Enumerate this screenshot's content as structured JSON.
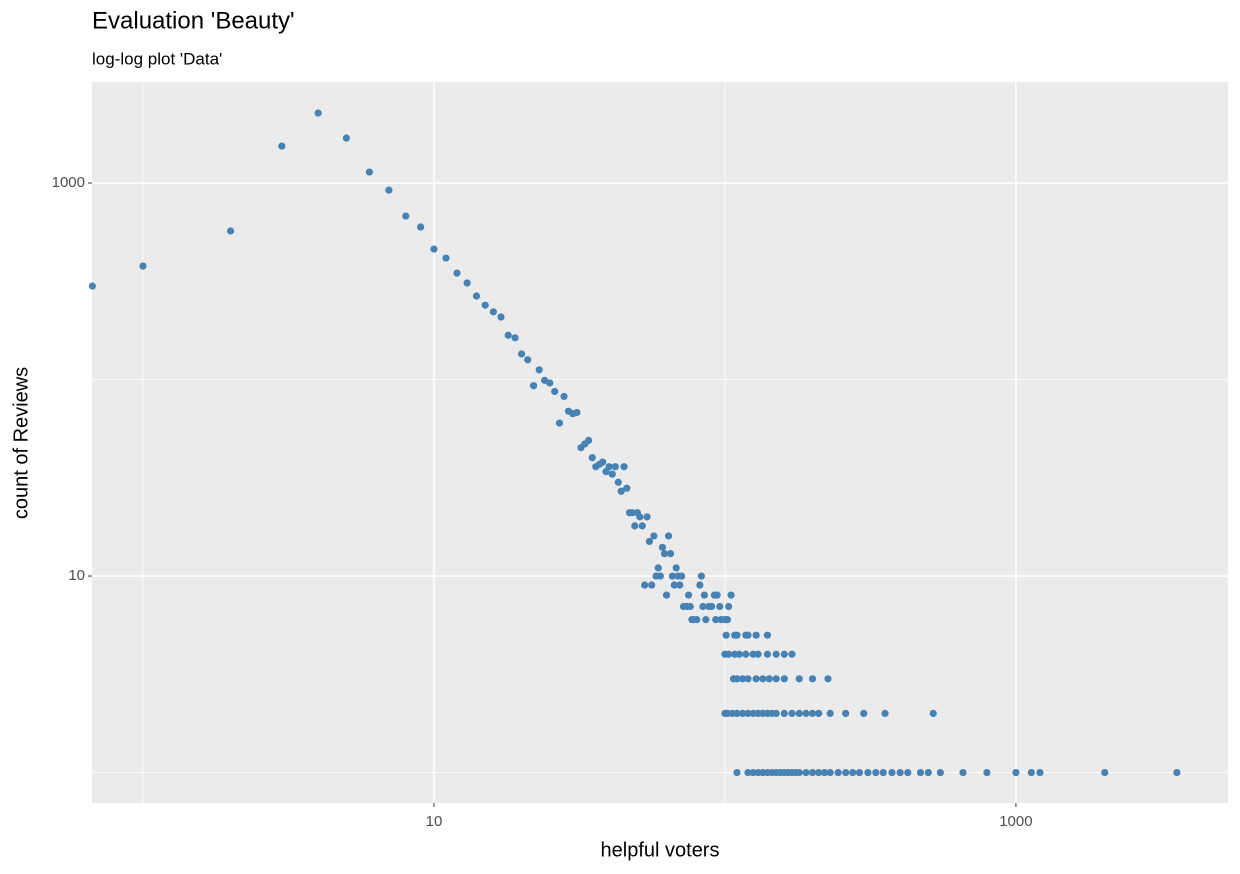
{
  "chart_data": {
    "type": "scatter",
    "title": "Evaluation 'Beauty'",
    "subtitle": "log-log plot 'Data'",
    "x_label": "helpful voters",
    "y_label": "count of Reviews",
    "log_x": true,
    "log_y": true,
    "grid": true,
    "xlim": [
      0.668,
      5357
    ],
    "ylim": [
      0.7,
      3266
    ],
    "xticks": [
      10,
      1000
    ],
    "yticks": [
      10,
      1000
    ],
    "xgrid_minor": [
      1,
      100
    ],
    "ygrid_minor": [
      1,
      100
    ],
    "series": [
      {
        "color": "#4682b4",
        "x": [
          0.67,
          1,
          2,
          3,
          4,
          5,
          6,
          7,
          8,
          9,
          10,
          11,
          12,
          13,
          14,
          15,
          16,
          17,
          18,
          19,
          20,
          21,
          22,
          23,
          24,
          25,
          26,
          27,
          28,
          29,
          30,
          31,
          32,
          33,
          34,
          35,
          36,
          37,
          38,
          39,
          40,
          41,
          42,
          43,
          44,
          45,
          46,
          47,
          48,
          49,
          50,
          51,
          52,
          53,
          54,
          55,
          56,
          57,
          58,
          59,
          60,
          61,
          62,
          63,
          64,
          65,
          66,
          67,
          68,
          69,
          70,
          71,
          72,
          74,
          75,
          76,
          77,
          78,
          80,
          82,
          83,
          84,
          85,
          86,
          88,
          90,
          92,
          93,
          94,
          96,
          97,
          100,
          101,
          102,
          103,
          105,
          108,
          110,
          118,
          120,
          128,
          140,
          100,
          103,
          108,
          112,
          118,
          125,
          130,
          140,
          150,
          160,
          170,
          107,
          110,
          115,
          120,
          128,
          135,
          142,
          150,
          160,
          180,
          200,
          226,
          100,
          102,
          106,
          110,
          115,
          120,
          125,
          130,
          135,
          140,
          145,
          150,
          160,
          170,
          180,
          190,
          200,
          210,
          230,
          260,
          300,
          355,
          520,
          110,
          120,
          125,
          130,
          135,
          140,
          145,
          150,
          155,
          160,
          165,
          170,
          175,
          180,
          190,
          200,
          210,
          220,
          230,
          245,
          260,
          275,
          290,
          310,
          330,
          350,
          375,
          400,
          425,
          470,
          500,
          550,
          658,
          795,
          1000,
          1130,
          1210,
          2020,
          3575
        ],
        "values": [
          299,
          378,
          570,
          1542,
          2270,
          1694,
          1137,
          920,
          679,
          597,
          461,
          415,
          348,
          310,
          266,
          239,
          221,
          208,
          168,
          163,
          135,
          126,
          93,
          112,
          99,
          96,
          87,
          60,
          82,
          69,
          67,
          68,
          45,
          47,
          49,
          40,
          36,
          37,
          38,
          34,
          36,
          33,
          36,
          30,
          27,
          36,
          28,
          21,
          21,
          18,
          21,
          20,
          18,
          9,
          20,
          15,
          9,
          16,
          10,
          11,
          10,
          14,
          13,
          8,
          16,
          13,
          10,
          9,
          11,
          10,
          9,
          10,
          7,
          7,
          8,
          7,
          6,
          6,
          6,
          9,
          10,
          7,
          8,
          6,
          7,
          7,
          8,
          6,
          8,
          7,
          6,
          6,
          5,
          6,
          7,
          8,
          5,
          5,
          5,
          5,
          5,
          5,
          4,
          4,
          4,
          4,
          4,
          4,
          4,
          4,
          4,
          4,
          4,
          3,
          3,
          3,
          3,
          3,
          3,
          3,
          3,
          3,
          3,
          3,
          3,
          2,
          2,
          2,
          2,
          2,
          2,
          2,
          2,
          2,
          2,
          2,
          2,
          2,
          2,
          2,
          2,
          2,
          2,
          2,
          2,
          2,
          2,
          2,
          1,
          1,
          1,
          1,
          1,
          1,
          1,
          1,
          1,
          1,
          1,
          1,
          1,
          1,
          1,
          1,
          1,
          1,
          1,
          1,
          1,
          1,
          1,
          1,
          1,
          1,
          1,
          1,
          1,
          1,
          1,
          1,
          1,
          1,
          1,
          1,
          1,
          1,
          1
        ]
      }
    ]
  }
}
